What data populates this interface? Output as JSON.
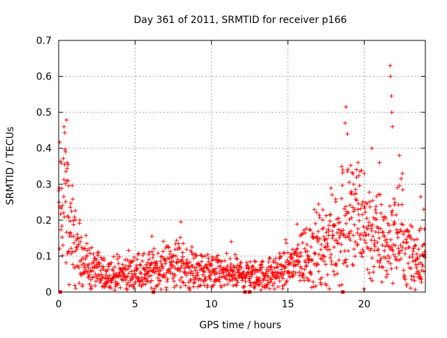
{
  "chart_data": {
    "type": "scatter",
    "title": "Day 361 of 2011, SRMTID for receiver p166",
    "xlabel": "GPS time / hours",
    "ylabel": "SRMTID / TECUs",
    "xlim": [
      0,
      24
    ],
    "ylim": [
      0,
      0.7
    ],
    "xticks": [
      "0",
      "5",
      "10",
      "15",
      "20"
    ],
    "yticks": [
      "0",
      "0.1",
      "0.2",
      "0.3",
      "0.4",
      "0.5",
      "0.6",
      "0.7"
    ],
    "grid": true,
    "marker": "+",
    "color": "#ff0000",
    "trend": [
      [
        0.0,
        0.2
      ],
      [
        0.3,
        0.28
      ],
      [
        0.6,
        0.22
      ],
      [
        1.0,
        0.13
      ],
      [
        1.5,
        0.1
      ],
      [
        2.0,
        0.07
      ],
      [
        3.0,
        0.05
      ],
      [
        4.0,
        0.05
      ],
      [
        5.0,
        0.055
      ],
      [
        6.0,
        0.06
      ],
      [
        7.0,
        0.075
      ],
      [
        8.0,
        0.08
      ],
      [
        9.0,
        0.06
      ],
      [
        10.0,
        0.055
      ],
      [
        11.0,
        0.05
      ],
      [
        12.0,
        0.05
      ],
      [
        13.0,
        0.045
      ],
      [
        14.0,
        0.05
      ],
      [
        15.0,
        0.07
      ],
      [
        16.0,
        0.1
      ],
      [
        17.0,
        0.12
      ],
      [
        18.0,
        0.14
      ],
      [
        18.8,
        0.22
      ],
      [
        19.5,
        0.2
      ],
      [
        20.5,
        0.16
      ],
      [
        21.5,
        0.13
      ],
      [
        22.2,
        0.17
      ],
      [
        23.0,
        0.1
      ],
      [
        24.0,
        0.1
      ]
    ],
    "peaks": [
      {
        "x": 0.35,
        "y": 0.46
      },
      {
        "x": 0.45,
        "y": 0.39
      },
      {
        "x": 0.55,
        "y": 0.36
      },
      {
        "x": 0.6,
        "y": 0.31
      },
      {
        "x": 6.1,
        "y": 0.155
      },
      {
        "x": 8.0,
        "y": 0.195
      },
      {
        "x": 11.3,
        "y": 0.14
      },
      {
        "x": 18.8,
        "y": 0.515
      },
      {
        "x": 18.75,
        "y": 0.47
      },
      {
        "x": 18.9,
        "y": 0.44
      },
      {
        "x": 19.3,
        "y": 0.3
      },
      {
        "x": 19.6,
        "y": 0.36
      },
      {
        "x": 20.0,
        "y": 0.33
      },
      {
        "x": 20.5,
        "y": 0.4
      },
      {
        "x": 21.0,
        "y": 0.36
      },
      {
        "x": 21.7,
        "y": 0.63
      },
      {
        "x": 21.72,
        "y": 0.6
      },
      {
        "x": 21.78,
        "y": 0.545
      },
      {
        "x": 21.8,
        "y": 0.5
      },
      {
        "x": 21.85,
        "y": 0.46
      },
      {
        "x": 22.3,
        "y": 0.38
      },
      {
        "x": 22.5,
        "y": 0.33
      },
      {
        "x": 23.7,
        "y": 0.265
      },
      {
        "x": 23.9,
        "y": 0.23
      }
    ],
    "zero_points": [
      0.1,
      6.2,
      12.2,
      12.5,
      18.6
    ]
  }
}
